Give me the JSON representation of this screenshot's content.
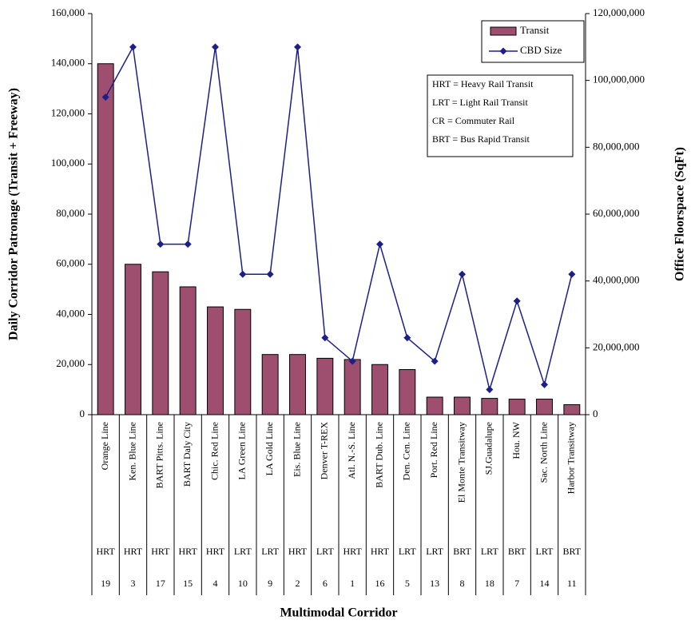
{
  "chart_data": {
    "type": "bar_line",
    "x_label": "Multimodal Corridor",
    "y_label": "Daily Corridor Patronage (Transit + Freeway)",
    "y2_label": "Office Floorspace (SqFt)",
    "categories": [
      "Orange Line",
      "Ken. Blue Line",
      "BART Pitts. Line",
      "BART Daly City",
      "Chic. Red Line",
      "LA Green Line",
      "LA Gold Line",
      "Eis. Blue Line",
      "Denver T-REX",
      "Atl. N.-S. Line",
      "BART Dub. Line",
      "Den. Cen. Line",
      "Port. Red Line",
      "El Monte Transitway",
      "SJ.Guadalupe",
      "Hou. NW",
      "Sac. North Line",
      "Harbor Transitway"
    ],
    "corridor_types": [
      "HRT",
      "HRT",
      "HRT",
      "HRT",
      "HRT",
      "LRT",
      "LRT",
      "HRT",
      "LRT",
      "HRT",
      "HRT",
      "LRT",
      "LRT",
      "BRT",
      "LRT",
      "BRT",
      "LRT",
      "BRT"
    ],
    "corridor_ids": [
      "19",
      "3",
      "17",
      "15",
      "4",
      "10",
      "9",
      "2",
      "6",
      "1",
      "16",
      "5",
      "13",
      "8",
      "18",
      "7",
      "14",
      "11"
    ],
    "series": [
      {
        "name": "Transit",
        "type": "bar",
        "color": "#9e4f70",
        "values": [
          140000,
          60000,
          57000,
          51000,
          43000,
          42000,
          24000,
          24000,
          22500,
          22000,
          20000,
          18000,
          7000,
          7000,
          6500,
          6200,
          6200,
          4000
        ]
      },
      {
        "name": "CBD Size",
        "type": "line",
        "axis": "y2",
        "color": "#1c1f8a",
        "values": [
          95000000,
          110000000,
          51000000,
          51000000,
          110000000,
          42000000,
          42000000,
          110000000,
          23000000,
          16000000,
          51000000,
          23000000,
          16000000,
          42000000,
          7500000,
          34000000,
          9000000,
          42000000
        ]
      }
    ],
    "ylim": [
      0,
      160000
    ],
    "yticks": [
      0,
      {
        "value": 20000,
        "label": "20,000"
      },
      {
        "value": 40000,
        "label": "40,000"
      },
      {
        "value": 60000,
        "label": "60,000"
      },
      {
        "value": 80000,
        "label": "80,000"
      },
      {
        "value": 100000,
        "label": "100,000"
      },
      {
        "value": 120000,
        "label": "120,000"
      },
      {
        "value": 140000,
        "label": "140,000"
      },
      {
        "value": 160000,
        "label": "160,000"
      }
    ],
    "y2lim": [
      0,
      120000000
    ],
    "y2ticks": [
      0,
      {
        "value": 20000000,
        "label": "20,000,000"
      },
      {
        "value": 40000000,
        "label": "40,000,000"
      },
      {
        "value": 60000000,
        "label": "60,000,000"
      },
      {
        "value": 80000000,
        "label": "80,000,000"
      },
      {
        "value": 100000000,
        "label": "100,000,000"
      },
      {
        "value": 120000000,
        "label": "120,000,000"
      }
    ],
    "legend": "upper right",
    "notes": [
      "HRT = Heavy Rail Transit",
      "LRT = Light Rail Transit",
      "CR = Commuter Rail",
      "BRT = Bus Rapid Transit"
    ]
  }
}
